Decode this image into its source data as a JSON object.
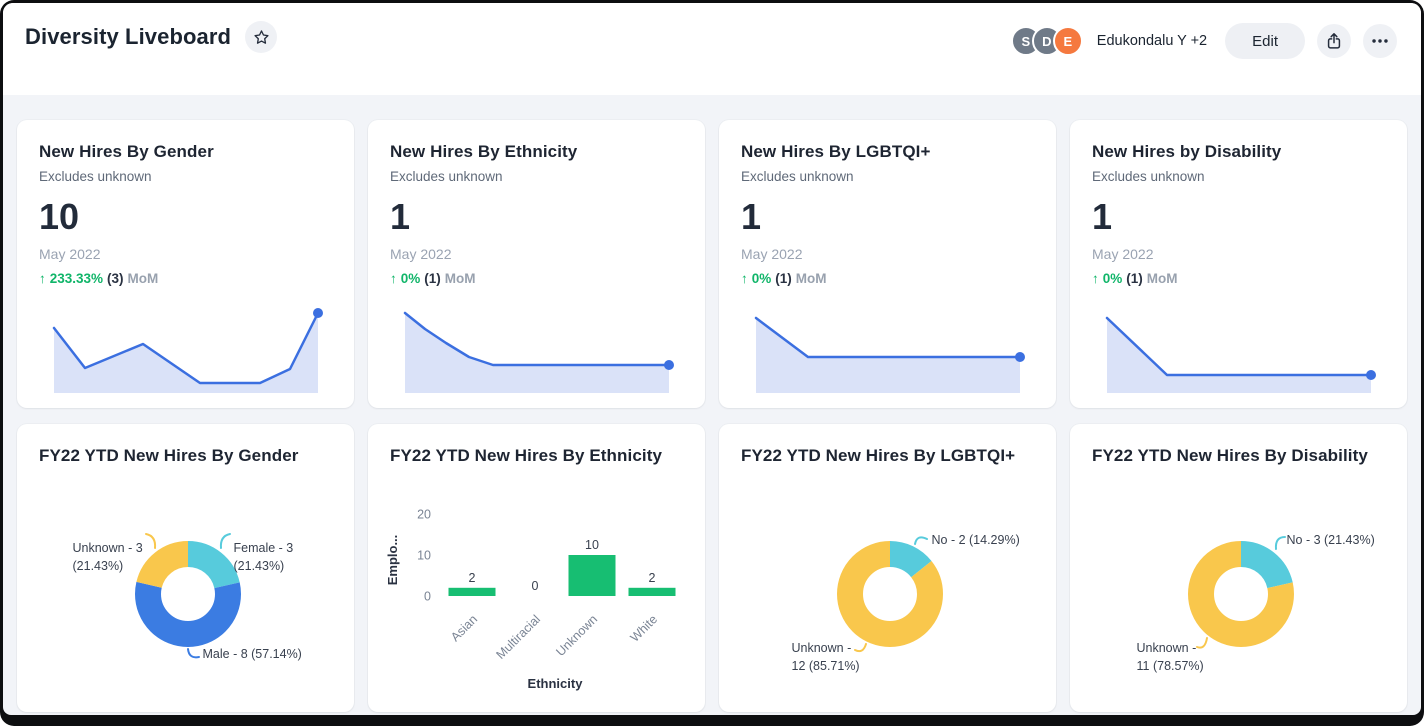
{
  "header": {
    "title": "Diversity Liveboard",
    "favorite_icon": "star-outline",
    "avatars": [
      {
        "initial": "S",
        "color": "#6F7A88"
      },
      {
        "initial": "D",
        "color": "#6F7A88"
      },
      {
        "initial": "E",
        "color": "#F5793F"
      }
    ],
    "shared_users_label": "Edukondalu Y +2",
    "edit_button_label": "Edit",
    "share_icon": "share-export",
    "more_icon": "ellipsis"
  },
  "colors": {
    "accent_blue": "#3B6FE0",
    "spark_fill": "#DAE2F8",
    "positive_green": "#10B569",
    "slice_cyan": "#57CBDC",
    "slice_blue": "#3B7CE2",
    "slice_yellow": "#F9C74C",
    "bar_green": "#17BE72"
  },
  "kpi_cards": [
    {
      "title": "New Hires By Gender",
      "subtitle": "Excludes unknown",
      "value": "10",
      "period": "May 2022",
      "change": {
        "arrow": "up",
        "pct": "233.33%",
        "abs": "(3)",
        "suffix": "MoM"
      },
      "chart_data": {
        "type": "area-sparkline",
        "points": [
          [
            0,
            15
          ],
          [
            31,
            55
          ],
          [
            89,
            31
          ],
          [
            146,
            70
          ],
          [
            206,
            70
          ],
          [
            236,
            56
          ],
          [
            264,
            0
          ]
        ]
      }
    },
    {
      "title": "New Hires By Ethnicity",
      "subtitle": "Excludes unknown",
      "value": "1",
      "period": "May 2022",
      "change": {
        "arrow": "up",
        "pct": "0%",
        "abs": "(1)",
        "suffix": "MoM"
      },
      "chart_data": {
        "type": "area-sparkline",
        "points": [
          [
            0,
            0
          ],
          [
            20,
            16
          ],
          [
            41,
            30
          ],
          [
            64,
            44
          ],
          [
            88,
            52
          ],
          [
            264,
            52
          ]
        ]
      }
    },
    {
      "title": "New Hires By LGBTQI+",
      "subtitle": "Excludes unknown",
      "value": "1",
      "period": "May 2022",
      "change": {
        "arrow": "up",
        "pct": "0%",
        "abs": "(1)",
        "suffix": "MoM"
      },
      "chart_data": {
        "type": "area-sparkline",
        "points": [
          [
            0,
            5
          ],
          [
            52,
            44
          ],
          [
            264,
            44
          ]
        ]
      }
    },
    {
      "title": "New Hires by Disability",
      "subtitle": "Excludes unknown",
      "value": "1",
      "period": "May 2022",
      "change": {
        "arrow": "up",
        "pct": "0%",
        "abs": "(1)",
        "suffix": "MoM"
      },
      "chart_data": {
        "type": "area-sparkline",
        "points": [
          [
            0,
            5
          ],
          [
            60,
            62
          ],
          [
            264,
            62
          ]
        ]
      }
    }
  ],
  "chart_cards": [
    {
      "title": "FY22 YTD New Hires By Gender",
      "chart_data": {
        "type": "donut",
        "slices": [
          {
            "label": "Female",
            "value": 3,
            "pct": 21.43,
            "color": "#57CBDC"
          },
          {
            "label": "Male",
            "value": 8,
            "pct": 57.14,
            "color": "#3B7CE2"
          },
          {
            "label": "Unknown",
            "value": 3,
            "pct": 21.43,
            "color": "#F9C74C"
          }
        ]
      },
      "labels": {
        "left": [
          "Unknown - 3",
          "(21.43%)"
        ],
        "right": [
          "Female - 3",
          "(21.43%)"
        ],
        "bottom": [
          "Male - 8 (57.14%)"
        ]
      }
    },
    {
      "title": "FY22 YTD New Hires By Ethnicity",
      "chart_data": {
        "type": "bar",
        "categories": [
          "Asian",
          "Multiracial",
          "Unknown",
          "White"
        ],
        "values": [
          2,
          0,
          10,
          2
        ],
        "ylabel": "Emplo...",
        "xlabel": "Ethnicity",
        "yticks": [
          0,
          10,
          20
        ],
        "ylim": [
          0,
          20
        ],
        "bar_color": "#17BE72"
      }
    },
    {
      "title": "FY22 YTD New Hires By LGBTQI+",
      "chart_data": {
        "type": "donut",
        "slices": [
          {
            "label": "No",
            "value": 2,
            "pct": 14.29,
            "color": "#57CBDC"
          },
          {
            "label": "Unknown",
            "value": 12,
            "pct": 85.71,
            "color": "#F9C74C"
          }
        ]
      },
      "labels": {
        "right": [
          "No - 2 (14.29%)"
        ],
        "bottom_left": [
          "Unknown -",
          "12 (85.71%)"
        ]
      }
    },
    {
      "title": "FY22 YTD New Hires By Disability",
      "chart_data": {
        "type": "donut",
        "slices": [
          {
            "label": "No",
            "value": 3,
            "pct": 21.43,
            "color": "#57CBDC"
          },
          {
            "label": "Unknown",
            "value": 11,
            "pct": 78.57,
            "color": "#F9C74C"
          }
        ]
      },
      "labels": {
        "right": [
          "No - 3 (21.43%)"
        ],
        "bottom_left": [
          "Unknown -",
          "11 (78.57%)"
        ]
      }
    }
  ]
}
